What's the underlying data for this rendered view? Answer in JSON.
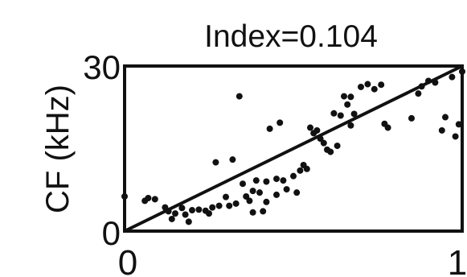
{
  "chart_data": {
    "type": "scatter",
    "title": "Index=0.104",
    "xlabel": "",
    "ylabel": "CF (kHz)",
    "xlim": [
      0,
      1
    ],
    "ylim": [
      0,
      30
    ],
    "x_ticks": [
      "0",
      "1"
    ],
    "y_ticks": [
      "0",
      "30"
    ],
    "grid": false,
    "legend": "none",
    "colors": {
      "points": "#111111",
      "line": "#111111",
      "axes": "#111111",
      "background": "#ffffff"
    },
    "reference_line": {
      "from": [
        0,
        0
      ],
      "to": [
        1,
        30
      ]
    },
    "series": [
      {
        "points": [
          [
            0.0,
            6.3
          ],
          [
            0.06,
            5.5
          ],
          [
            0.07,
            6.0
          ],
          [
            0.09,
            5.8
          ],
          [
            0.12,
            4.3
          ],
          [
            0.13,
            3.6
          ],
          [
            0.14,
            2.2
          ],
          [
            0.15,
            3.2
          ],
          [
            0.17,
            4.2
          ],
          [
            0.18,
            3.0
          ],
          [
            0.19,
            1.7
          ],
          [
            0.2,
            3.8
          ],
          [
            0.22,
            3.9
          ],
          [
            0.24,
            3.7
          ],
          [
            0.25,
            3.2
          ],
          [
            0.26,
            4.3
          ],
          [
            0.27,
            12.5
          ],
          [
            0.28,
            4.6
          ],
          [
            0.3,
            6.2
          ],
          [
            0.31,
            4.6
          ],
          [
            0.32,
            13.0
          ],
          [
            0.33,
            5.0
          ],
          [
            0.34,
            24.5
          ],
          [
            0.35,
            8.6
          ],
          [
            0.36,
            6.3
          ],
          [
            0.37,
            5.5
          ],
          [
            0.38,
            7.3
          ],
          [
            0.38,
            3.4
          ],
          [
            0.39,
            9.2
          ],
          [
            0.4,
            7.0
          ],
          [
            0.41,
            3.6
          ],
          [
            0.42,
            9.0
          ],
          [
            0.42,
            5.3
          ],
          [
            0.43,
            18.6
          ],
          [
            0.45,
            9.5
          ],
          [
            0.45,
            6.6
          ],
          [
            0.46,
            19.7
          ],
          [
            0.47,
            9.2
          ],
          [
            0.48,
            7.6
          ],
          [
            0.5,
            10.0
          ],
          [
            0.51,
            7.0
          ],
          [
            0.52,
            11.0
          ],
          [
            0.53,
            12.0
          ],
          [
            0.54,
            11.3
          ],
          [
            0.55,
            18.8
          ],
          [
            0.56,
            17.8
          ],
          [
            0.57,
            18.3
          ],
          [
            0.58,
            16.8
          ],
          [
            0.59,
            16.0
          ],
          [
            0.6,
            14.8
          ],
          [
            0.61,
            14.4
          ],
          [
            0.62,
            21.4
          ],
          [
            0.63,
            15.5
          ],
          [
            0.64,
            21.0
          ],
          [
            0.65,
            24.5
          ],
          [
            0.66,
            23.0
          ],
          [
            0.67,
            19.2
          ],
          [
            0.67,
            24.4
          ],
          [
            0.68,
            21.3
          ],
          [
            0.7,
            26.2
          ],
          [
            0.72,
            26.7
          ],
          [
            0.74,
            25.8
          ],
          [
            0.76,
            26.6
          ],
          [
            0.77,
            19.5
          ],
          [
            0.78,
            18.8
          ],
          [
            0.85,
            20.5
          ],
          [
            0.87,
            25.0
          ],
          [
            0.88,
            26.3
          ],
          [
            0.9,
            27.3
          ],
          [
            0.92,
            27.0
          ],
          [
            0.94,
            18.3
          ],
          [
            0.95,
            20.7
          ],
          [
            0.97,
            28.0
          ],
          [
            0.98,
            17.2
          ],
          [
            0.99,
            19.4
          ],
          [
            1.0,
            29.0
          ]
        ]
      }
    ]
  }
}
